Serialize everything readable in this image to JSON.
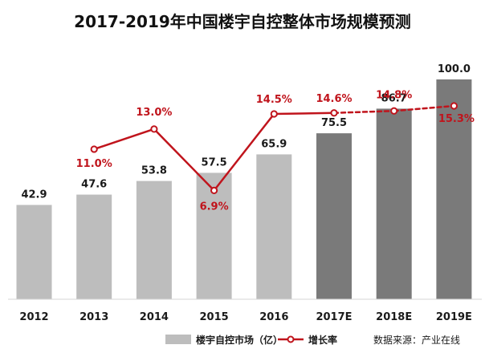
{
  "chart_data": {
    "type": "bar",
    "title": "2017-2019年中国楼宇自控整体市场规模预测",
    "categories": [
      "2012",
      "2013",
      "2014",
      "2015",
      "2016",
      "2017E",
      "2018E",
      "2019E"
    ],
    "forecast_categories": [
      "2017E",
      "2018E",
      "2019E"
    ],
    "ylim": [
      0,
      110
    ],
    "series": [
      {
        "name": "楼宇自控市场（亿）",
        "type": "bar",
        "values": [
          42.9,
          47.6,
          53.8,
          57.5,
          65.9,
          75.5,
          86.7,
          100.0
        ],
        "labels": [
          "42.9",
          "47.6",
          "53.8",
          "57.5",
          "65.9",
          "75.5",
          "86.7",
          "100.0"
        ],
        "color_actual": "#bdbdbd",
        "color_forecast": "#7a7a7a"
      },
      {
        "name": "增长率",
        "type": "line",
        "values": [
          null,
          11.0,
          13.0,
          6.9,
          14.5,
          14.6,
          14.8,
          15.3
        ],
        "labels": [
          null,
          "11.0%",
          "13.0%",
          "6.9%",
          "14.5%",
          "14.6%",
          "14.8%",
          "15.3%"
        ],
        "unit": "%",
        "ylim": [
          0,
          20
        ],
        "color": "#c0141c"
      }
    ],
    "grid": false,
    "legend": "bottom"
  },
  "source": "数据来源：产业在线"
}
